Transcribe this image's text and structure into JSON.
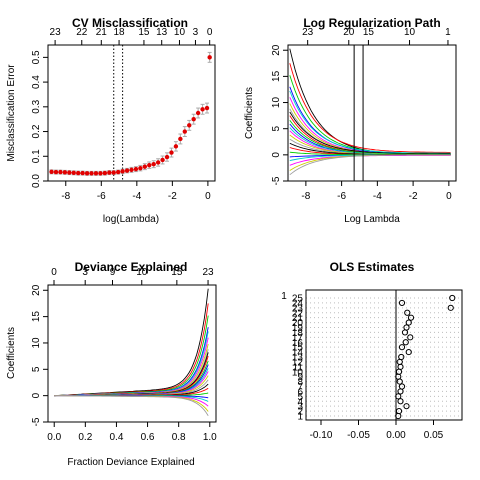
{
  "chart_data": [
    {
      "type": "scatter",
      "title": "CV Misclassification",
      "xlabel": "log(Lambda)",
      "ylabel": "Misclassification Error",
      "xlim": [
        -9,
        0.4
      ],
      "ylim": [
        0,
        0.55
      ],
      "x_ticks": [
        "-8",
        "-6",
        "-4",
        "-2",
        "0"
      ],
      "y_ticks": [
        "0.0",
        "0.1",
        "0.2",
        "0.3",
        "0.4",
        "0.5"
      ],
      "top_ticks": [
        "23",
        "22",
        "21",
        "18",
        "15",
        "13",
        "10",
        "3",
        "0"
      ],
      "top_tick_x": [
        -8.6,
        -7.1,
        -6.0,
        -5.0,
        -3.6,
        -2.6,
        -1.6,
        -0.7,
        0.1
      ],
      "vlines_x": [
        -5.3,
        -4.8
      ],
      "point_color": "#e00000",
      "errorbar_color": "#aaaaaa",
      "x": [
        -8.8,
        -8.55,
        -8.3,
        -8.05,
        -7.8,
        -7.55,
        -7.3,
        -7.05,
        -6.8,
        -6.55,
        -6.3,
        -6.05,
        -5.8,
        -5.55,
        -5.3,
        -5.05,
        -4.8,
        -4.55,
        -4.3,
        -4.05,
        -3.8,
        -3.55,
        -3.3,
        -3.05,
        -2.8,
        -2.55,
        -2.3,
        -2.05,
        -1.8,
        -1.55,
        -1.3,
        -1.05,
        -0.8,
        -0.55,
        -0.3,
        -0.05,
        0.1
      ],
      "y": [
        0.037,
        0.036,
        0.036,
        0.035,
        0.034,
        0.033,
        0.032,
        0.032,
        0.031,
        0.031,
        0.031,
        0.031,
        0.032,
        0.034,
        0.034,
        0.036,
        0.039,
        0.042,
        0.045,
        0.048,
        0.052,
        0.058,
        0.064,
        0.068,
        0.075,
        0.085,
        0.097,
        0.115,
        0.14,
        0.17,
        0.2,
        0.225,
        0.25,
        0.275,
        0.29,
        0.295,
        0.5
      ],
      "err": [
        0.008,
        0.008,
        0.008,
        0.008,
        0.008,
        0.008,
        0.008,
        0.008,
        0.008,
        0.008,
        0.008,
        0.008,
        0.008,
        0.008,
        0.008,
        0.008,
        0.009,
        0.009,
        0.01,
        0.01,
        0.011,
        0.012,
        0.013,
        0.014,
        0.015,
        0.016,
        0.017,
        0.018,
        0.019,
        0.02,
        0.02,
        0.02,
        0.02,
        0.02,
        0.02,
        0.02,
        0.02
      ]
    },
    {
      "type": "line",
      "title": "Log Regularization Path",
      "xlabel": "Log Lambda",
      "ylabel": "Coefficients",
      "xlim": [
        -9,
        0.4
      ],
      "ylim": [
        -5,
        21
      ],
      "x_ticks": [
        "-8",
        "-6",
        "-4",
        "-2",
        "0"
      ],
      "y_ticks": [
        "-5",
        "0",
        "5",
        "10",
        "15",
        "20"
      ],
      "top_ticks": [
        "23",
        "20",
        "15",
        "10",
        "1"
      ],
      "top_tick_x": [
        -7.9,
        -5.6,
        -4.5,
        -2.2,
        -0.05
      ],
      "vlines_x": [
        -5.3,
        -4.8
      ],
      "x_range": [
        -8.9,
        0.1
      ],
      "decay": 1.1,
      "series_start": [
        20.3,
        17.5,
        15.2,
        13.0,
        12.2,
        11.0,
        9.8,
        8.8,
        8.2,
        7.5,
        6.6,
        5.9,
        5.2,
        4.6,
        3.8,
        3.0,
        2.2,
        1.4,
        0.5,
        -0.4,
        -1.1,
        -2.0,
        -3.0,
        -3.8
      ],
      "series_end": [
        0.0,
        0.45,
        0.2,
        0.15,
        0.3,
        0.1,
        0.12,
        0.08,
        0.2,
        0.05,
        0.1,
        0.0,
        0.05,
        -0.05,
        0.03,
        0.0,
        0.02,
        -0.02,
        0.0,
        -0.05,
        0.0,
        -0.1,
        0.0,
        0.0
      ],
      "series_colors": [
        "#000000",
        "#ff0000",
        "#00cd00",
        "#0000ff",
        "#00cdcd",
        "#ff00ff",
        "#cdcd00",
        "#9e9e9e",
        "#000000",
        "#ff0000",
        "#00cd00",
        "#0000ff",
        "#00cdcd",
        "#ff00ff",
        "#cdcd00",
        "#9e9e9e",
        "#000000",
        "#ff0000",
        "#00cd00",
        "#0000ff",
        "#00cdcd",
        "#ff00ff",
        "#cdcd00",
        "#9e9e9e"
      ]
    },
    {
      "type": "line",
      "title": "Deviance Explained",
      "xlabel": "Fraction Deviance Explained",
      "ylabel": "Coefficients",
      "xlim": [
        -0.04,
        1.04
      ],
      "ylim": [
        -5,
        21
      ],
      "x_ticks": [
        "0.0",
        "0.2",
        "0.4",
        "0.6",
        "0.8",
        "1.0"
      ],
      "y_ticks": [
        "-5",
        "0",
        "5",
        "10",
        "15",
        "20"
      ],
      "top_ticks": [
        "0",
        "3",
        "9",
        "10",
        "15",
        "23"
      ],
      "top_tick_x": [
        0.0,
        0.32,
        0.6,
        0.9,
        1.26,
        1.58
      ],
      "x_range": [
        0.0,
        0.99
      ],
      "series_start": [
        20.3,
        17.5,
        15.2,
        13.0,
        12.2,
        11.0,
        9.8,
        8.8,
        8.2,
        7.5,
        6.6,
        5.9,
        5.2,
        4.6,
        3.8,
        3.0,
        2.2,
        1.4,
        0.5,
        -0.4,
        -1.1,
        -2.0,
        -3.0,
        -3.8
      ],
      "series_colors": [
        "#000000",
        "#ff0000",
        "#00cd00",
        "#0000ff",
        "#00cdcd",
        "#ff00ff",
        "#cdcd00",
        "#9e9e9e",
        "#000000",
        "#ff0000",
        "#00cd00",
        "#0000ff",
        "#00cdcd",
        "#ff00ff",
        "#cdcd00",
        "#9e9e9e",
        "#000000",
        "#ff0000",
        "#00cd00",
        "#0000ff",
        "#00cdcd",
        "#ff00ff",
        "#cdcd00",
        "#9e9e9e"
      ]
    },
    {
      "type": "scatter",
      "title": "OLS Estimates",
      "xlabel": "",
      "ylabel": "",
      "xlim": [
        -0.12,
        0.088
      ],
      "x_ticks": [
        "-0.10",
        "-0.05",
        "0.00",
        "0.05"
      ],
      "x_tick_values": [
        -0.1,
        -0.05,
        0.0,
        0.05
      ],
      "zero_line": 0.0,
      "labels": [
        "25",
        "24",
        "23",
        "22",
        "21",
        "20",
        "19",
        "18",
        "17",
        "16",
        "15",
        "14",
        "13",
        "12",
        "11",
        "10",
        "9",
        "8",
        "7",
        "6",
        "5",
        "4",
        "3",
        "2",
        "1"
      ],
      "values": [
        0.075,
        0.008,
        0.073,
        0.015,
        0.02,
        0.017,
        0.014,
        0.012,
        0.019,
        0.013,
        0.008,
        0.017,
        0.007,
        0.005,
        0.006,
        0.004,
        0.003,
        0.005,
        0.008,
        0.006,
        0.003,
        0.006,
        0.014,
        0.004,
        0.003
      ],
      "top_label": "1",
      "point_color": "#000000"
    }
  ]
}
